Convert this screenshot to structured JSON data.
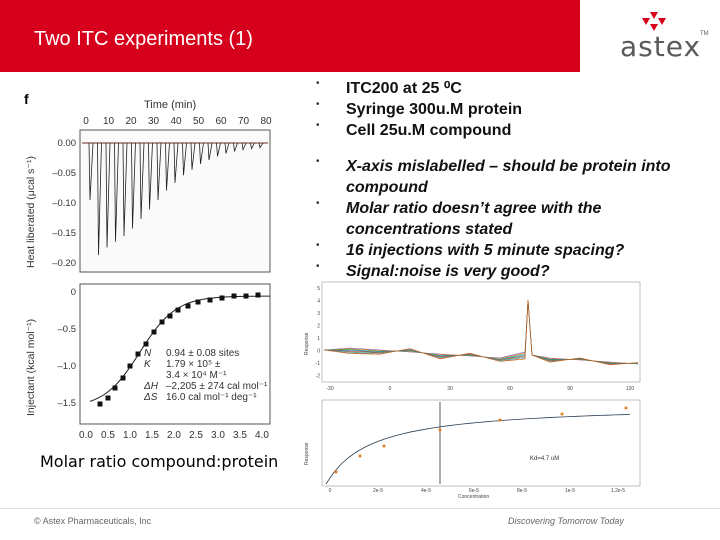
{
  "header": {
    "title": "Two ITC experiments (1)",
    "logo_text": "astex",
    "logo_tm": "TM",
    "accent": "#d6001c"
  },
  "figure": {
    "panel_letter": "f",
    "top_xlabel": "Time (min)",
    "top_xticks": [
      "0",
      "10",
      "20",
      "30",
      "40",
      "50",
      "60",
      "70",
      "80"
    ],
    "top_ylabel": "Heat liberated (μcal s⁻¹)",
    "top_yticks": [
      "0.00",
      "–0.05",
      "–0.10",
      "–0.15",
      "–0.20"
    ],
    "bottom_ylabel": "Injectant (kcal mol⁻¹)",
    "bottom_yticks": [
      "0",
      "–0.5",
      "–1.0",
      "–1.5"
    ],
    "bottom_xticks": [
      "0.0",
      "0.5",
      "1.0",
      "1.5",
      "2.0",
      "2.5",
      "3.0",
      "3.5",
      "4.0"
    ],
    "fit_params": [
      {
        "sym": "N",
        "val": "0.94 ± 0.08 sites"
      },
      {
        "sym": "K",
        "val": "1.79 × 10⁵ ±"
      },
      {
        "sym": "",
        "val": "3.4 × 10⁴ M⁻¹"
      },
      {
        "sym": "ΔH",
        "val": "–2,205 ± 274 cal mol⁻¹"
      },
      {
        "sym": "ΔS",
        "val": "16.0 cal mol⁻¹ deg⁻¹"
      }
    ],
    "caption": "Molar ratio compound:protein"
  },
  "bullets": [
    {
      "text": "ITC200 at 25 ⁰C",
      "style": "bold"
    },
    {
      "text": "Syringe   300u.M protein",
      "style": "bold"
    },
    {
      "text": "Cell 25u.M compound",
      "style": "bold"
    },
    {
      "text": "X-axis mislabelled – should be protein into compound",
      "style": "ital"
    },
    {
      "text": "Molar ratio doesn’t agree with the concentrations stated",
      "style": "ital"
    },
    {
      "text": "16 injections with 5 minute spacing?",
      "style": "ital"
    },
    {
      "text": "Signal:noise is very good?",
      "style": "ital"
    }
  ],
  "inset": {
    "top_yticks": [
      "5",
      "4",
      "3",
      "2",
      "1",
      "0",
      "-1",
      "-2"
    ],
    "top_ylabel": "Response",
    "top_xticks": [
      "-30",
      "0",
      "30",
      "60",
      "90",
      "120"
    ],
    "bottom_ylabel": "Response",
    "bottom_xlabel": "Concentration",
    "bottom_xticks": [
      "0",
      "2e-5",
      "4e-5",
      "6e-5",
      "8e-5",
      "1e-5",
      "1.2e-5"
    ],
    "kd_label": "Kd=4.7 uM"
  },
  "footer": {
    "left": "© Astex Pharmaceuticals, Inc",
    "right": "Discovering Tomorrow Today"
  }
}
